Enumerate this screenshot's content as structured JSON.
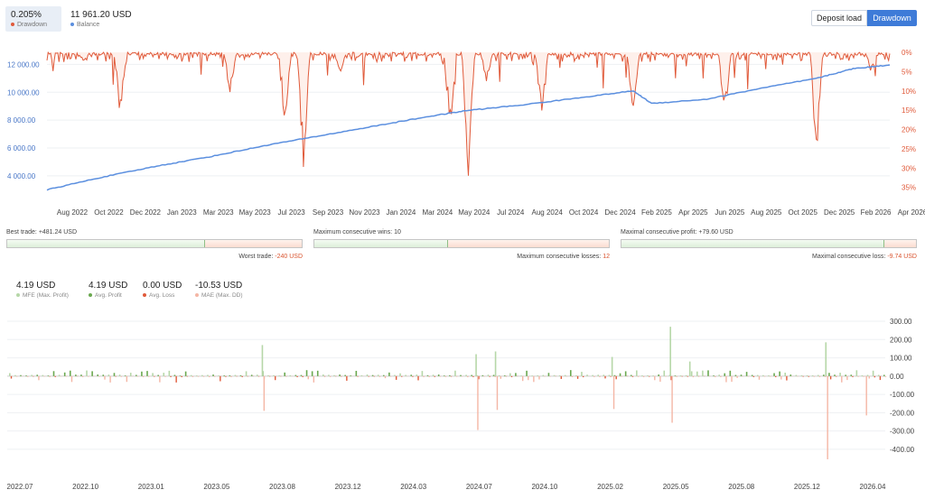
{
  "summary": {
    "drawdown_value": "0.205%",
    "drawdown_label": "Drawdown",
    "balance_value": "11 961.20 USD",
    "balance_label": "Balance"
  },
  "toggle": {
    "deposit_load": "Deposit load",
    "drawdown": "Drawdown"
  },
  "colors": {
    "balance": "#5b8fdf",
    "drawdown": "#e05a3a",
    "green": "#6aa84f",
    "light_green": "#b6d7a8",
    "red": "#e05a3a",
    "light_red": "#f4b6a5"
  },
  "stats": {
    "best_trade_label": "Best trade:",
    "best_trade_value": "+481.24 USD",
    "worst_trade_label": "Worst trade:",
    "worst_trade_value": "-240 USD",
    "max_cons_wins_label": "Maximum consecutive wins:",
    "max_cons_wins_value": "10",
    "max_cons_losses_label": "Maximum consecutive losses:",
    "max_cons_losses_value": "12",
    "max_cons_profit_label": "Maximal consecutive profit:",
    "max_cons_profit_value": "+79.60 USD",
    "max_cons_loss_label": "Maximal consecutive loss:",
    "max_cons_loss_value": "-9.74 USD"
  },
  "metrics": [
    {
      "value": "4.19 USD",
      "label": "MFE (Max. Profit)",
      "color": "#b6d7a8"
    },
    {
      "value": "4.19 USD",
      "label": "Avg. Profit",
      "color": "#6aa84f"
    },
    {
      "value": "0.00 USD",
      "label": "Avg. Loss",
      "color": "#e05a3a"
    },
    {
      "value": "-10.53 USD",
      "label": "MAE (Max. DD)",
      "color": "#f4b6a5"
    }
  ],
  "chart_data": [
    {
      "type": "line",
      "x_ticks": [
        "Aug 2022",
        "Oct 2022",
        "Dec 2022",
        "Jan 2023",
        "Mar 2023",
        "May 2023",
        "Jul 2023",
        "Sep 2023",
        "Nov 2023",
        "Jan 2024",
        "Mar 2024",
        "May 2024",
        "Jul 2024",
        "Aug 2024",
        "Oct 2024",
        "Dec 2024",
        "Feb 2025",
        "Apr 2025",
        "Jun 2025",
        "Aug 2025",
        "Oct 2025",
        "Dec 2025",
        "Feb 2026",
        "Apr 2026"
      ],
      "y_left_ticks": [
        "12 000.00",
        "10 000.00",
        "8 000.00",
        "6 000.00",
        "4 000.00"
      ],
      "y_right_ticks": [
        "0%",
        "5%",
        "10%",
        "15%",
        "20%",
        "25%",
        "30%",
        "35%"
      ],
      "y_left_range": [
        2500,
        13000
      ],
      "y_right_range": [
        0,
        36
      ],
      "series": [
        {
          "name": "Balance",
          "axis": "left",
          "x": [
            "2022-06",
            "2022-09",
            "2022-12",
            "2023-03",
            "2023-06",
            "2023-09",
            "2023-12",
            "2024-03",
            "2024-05",
            "2024-08",
            "2024-11",
            "2025-02",
            "2025-03",
            "2025-06",
            "2025-09",
            "2025-12",
            "2026-02",
            "2026-04"
          ],
          "values": [
            3000,
            3900,
            4700,
            5400,
            6200,
            6900,
            7600,
            8300,
            8700,
            9100,
            9600,
            10100,
            9200,
            9500,
            10300,
            11000,
            11700,
            11961
          ]
        },
        {
          "name": "Drawdown",
          "axis": "right",
          "x": [
            "2022-08",
            "2022-10",
            "2023-04",
            "2023-07",
            "2023-08",
            "2023-10",
            "2024-04",
            "2024-05",
            "2024-06",
            "2024-09",
            "2025-02",
            "2025-07",
            "2025-12",
            "2026-03"
          ],
          "values": [
            2.5,
            18,
            12,
            21,
            34,
            6,
            22,
            35,
            8,
            21,
            18,
            19,
            30,
            6
          ]
        }
      ]
    },
    {
      "type": "bar",
      "x_ticks": [
        "2022.07",
        "2022.10",
        "2023.01",
        "2023.05",
        "2023.08",
        "2023.12",
        "2024.03",
        "2024.07",
        "2024.10",
        "2025.02",
        "2025.05",
        "2025.08",
        "2025.12",
        "2026.04"
      ],
      "y_ticks": [
        "300.00",
        "200.00",
        "100.00",
        "0.00",
        "-100.00",
        "-200.00",
        "-300.00",
        "-400.00"
      ],
      "ylim": [
        -460,
        320
      ],
      "series": [
        {
          "name": "MFE (Max. Profit)",
          "x": [
            "2023.08",
            "2024.07",
            "2024.08",
            "2025.02",
            "2025.05",
            "2025.06",
            "2026.01"
          ],
          "values": [
            170,
            120,
            135,
            105,
            270,
            80,
            185
          ]
        },
        {
          "name": "MAE (Max. DD)",
          "x": [
            "2023.08",
            "2024.07",
            "2024.08",
            "2025.02",
            "2025.05",
            "2026.01",
            "2026.03"
          ],
          "values": [
            -190,
            -295,
            -185,
            -180,
            -255,
            -455,
            -215
          ]
        }
      ]
    }
  ]
}
